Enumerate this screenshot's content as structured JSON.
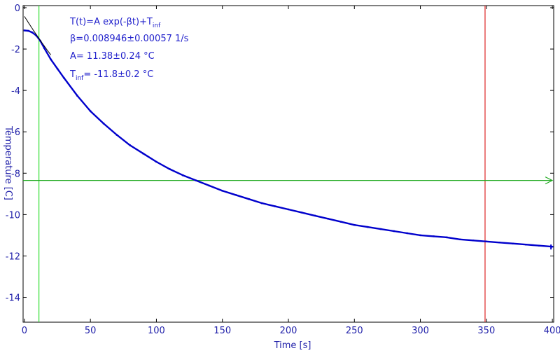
{
  "chart_data": {
    "type": "line",
    "xlabel": "Time [s]",
    "ylabel": "Temperature [C]",
    "xlim": [
      -1,
      401
    ],
    "ylim": [
      -15.2,
      0.1
    ],
    "xticks": [
      0,
      50,
      100,
      150,
      200,
      250,
      300,
      350,
      400
    ],
    "yticks": [
      0,
      -2,
      -4,
      -6,
      -8,
      -10,
      -12,
      -14
    ],
    "grid": false,
    "colors": {
      "data": "#0000cc",
      "fit": "#000000",
      "axis_text": "#2222aa",
      "annotation_text": "#2222cc",
      "start_marker": "#33dd33",
      "end_marker": "#dd2222",
      "level_marker": "#22aa22"
    },
    "annotations": {
      "line1_main": "T(t)=A exp(-βt)+T",
      "line1_sub": "inf",
      "line2": "β=0.008946±0.00057 1/s",
      "line3": "A= 11.38±0.24 °C",
      "line4_main": "T",
      "line4_sub": "inf",
      "line4_rest": "= -11.8±0.2 °C"
    },
    "fit": {
      "A": 11.38,
      "beta": 0.008946,
      "T_inf": -11.8,
      "x_start": 0,
      "x_end": 20
    },
    "markers": {
      "start_x": 11,
      "end_x": 349,
      "level_y": -8.35
    },
    "series": [
      {
        "x": [
          0,
          3,
          6,
          9,
          12,
          15,
          20,
          25,
          30,
          40,
          50,
          60,
          70,
          80,
          90,
          100,
          110,
          120,
          130,
          140,
          150,
          160,
          170,
          180,
          190,
          200,
          210,
          220,
          230,
          240,
          250,
          260,
          270,
          280,
          290,
          300,
          310,
          320,
          330,
          340,
          350,
          360,
          370,
          380,
          390,
          400
        ],
        "y": [
          -1.1,
          -1.12,
          -1.2,
          -1.35,
          -1.6,
          -1.95,
          -2.5,
          -2.95,
          -3.4,
          -4.25,
          -5.0,
          -5.6,
          -6.15,
          -6.65,
          -7.05,
          -7.45,
          -7.8,
          -8.1,
          -8.35,
          -8.6,
          -8.85,
          -9.05,
          -9.25,
          -9.45,
          -9.6,
          -9.75,
          -9.9,
          -10.05,
          -10.2,
          -10.35,
          -10.5,
          -10.6,
          -10.7,
          -10.8,
          -10.9,
          -11.0,
          -11.05,
          -11.1,
          -11.2,
          -11.25,
          -11.3,
          -11.35,
          -11.4,
          -11.45,
          -11.5,
          -11.55
        ]
      }
    ]
  }
}
